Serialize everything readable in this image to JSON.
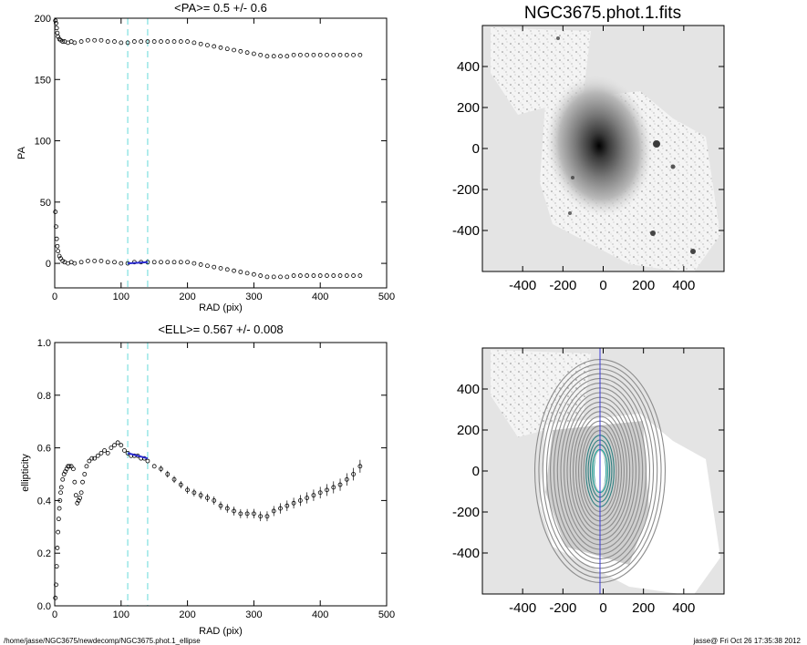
{
  "footer": {
    "path": "/home/jasse/NGC3675/newdecomp/NGC3675.phot.1_ellipse",
    "stamp": "jasse@  Fri Oct 26 17:35:38 2012"
  },
  "chart_data": [
    {
      "type": "scatter",
      "title": "<PA>=   0.5 +/-   0.6",
      "xlabel": "RAD (pix)",
      "ylabel": "PA",
      "xlim": [
        0,
        500
      ],
      "ylim": [
        -20,
        200
      ],
      "xticks": [
        "0",
        "100",
        "200",
        "300",
        "400",
        "500"
      ],
      "yticks": [
        "0",
        "50",
        "100",
        "150",
        "200"
      ],
      "vlines": [
        110,
        140
      ],
      "series": [
        {
          "values_x": [
            1,
            2,
            3,
            4,
            5,
            7,
            9,
            12,
            15,
            20,
            25,
            30,
            40,
            50,
            60,
            70,
            80,
            90,
            100,
            110,
            120,
            130,
            140,
            150,
            160,
            170,
            180,
            190,
            200,
            210,
            220,
            230,
            240,
            250,
            260,
            270,
            280,
            290,
            300,
            310,
            320,
            330,
            340,
            350,
            360,
            370,
            380,
            390,
            400,
            410,
            420,
            430,
            440,
            450,
            460
          ],
          "values_y": [
            198,
            196,
            192,
            188,
            185,
            183,
            182,
            181,
            181,
            180,
            181,
            180,
            181,
            182,
            182,
            182,
            181,
            181,
            180,
            180,
            181,
            181,
            181,
            181,
            181,
            181,
            181,
            181,
            181,
            180,
            179,
            178,
            177,
            176,
            175,
            174,
            173,
            172,
            171,
            170,
            169,
            169,
            169,
            169,
            170,
            170,
            170,
            170,
            170,
            170,
            170,
            170,
            170,
            170,
            170
          ]
        },
        {
          "values_x": [
            1,
            2,
            3,
            4,
            5,
            7,
            9,
            12,
            15,
            20,
            25,
            30,
            40,
            50,
            60,
            70,
            80,
            90,
            100,
            110,
            120,
            130,
            140,
            150,
            160,
            170,
            180,
            190,
            200,
            210,
            220,
            230,
            240,
            250,
            260,
            270,
            280,
            290,
            300,
            310,
            320,
            330,
            340,
            350,
            360,
            370,
            380,
            390,
            400,
            410,
            420,
            430,
            440,
            450,
            460
          ],
          "values_y": [
            42,
            30,
            20,
            14,
            10,
            6,
            4,
            2,
            1,
            0,
            1,
            0,
            1,
            2,
            2,
            2,
            1,
            1,
            0,
            0,
            1,
            1,
            1,
            1,
            1,
            1,
            1,
            1,
            1,
            0,
            -1,
            -2,
            -3,
            -4,
            -5,
            -6,
            -7,
            -8,
            -9,
            -10,
            -11,
            -11,
            -11,
            -11,
            -10,
            -10,
            -10,
            -10,
            -10,
            -10,
            -10,
            -10,
            -10,
            -10,
            -10
          ]
        }
      ],
      "fit": {
        "x": [
          110,
          140
        ],
        "y": [
          0,
          1
        ]
      }
    },
    {
      "type": "scatter",
      "title": "<ELL>= 0.567 +/-  0.008",
      "xlabel": "RAD (pix)",
      "ylabel": "ellipticity",
      "xlim": [
        0,
        500
      ],
      "ylim": [
        0,
        1
      ],
      "xticks": [
        "0",
        "100",
        "200",
        "300",
        "400",
        "500"
      ],
      "yticks": [
        "0.0",
        "0.2",
        "0.4",
        "0.6",
        "0.8",
        "1.0"
      ],
      "vlines": [
        110,
        140
      ],
      "series": [
        {
          "values_x": [
            1,
            2,
            3,
            4,
            5,
            6,
            7,
            8,
            9,
            10,
            12,
            14,
            16,
            18,
            20,
            22,
            25,
            28,
            30,
            32,
            34,
            36,
            38,
            40,
            42,
            45,
            48,
            52,
            56,
            60,
            65,
            70,
            75,
            80,
            85,
            90,
            95,
            100,
            105,
            110,
            115,
            120,
            125,
            130,
            135,
            140,
            150,
            160,
            170,
            180,
            190,
            200,
            210,
            220,
            230,
            240,
            250,
            260,
            270,
            280,
            290,
            300,
            310,
            320,
            330,
            340,
            350,
            360,
            370,
            380,
            390,
            400,
            410,
            420,
            430,
            440,
            450,
            460
          ],
          "values_y": [
            0.03,
            0.08,
            0.15,
            0.22,
            0.28,
            0.33,
            0.37,
            0.4,
            0.43,
            0.45,
            0.48,
            0.5,
            0.51,
            0.52,
            0.53,
            0.53,
            0.53,
            0.52,
            0.47,
            0.42,
            0.39,
            0.4,
            0.41,
            0.43,
            0.47,
            0.5,
            0.53,
            0.55,
            0.56,
            0.56,
            0.57,
            0.58,
            0.59,
            0.58,
            0.6,
            0.61,
            0.62,
            0.61,
            0.59,
            0.58,
            0.57,
            0.57,
            0.57,
            0.56,
            0.56,
            0.55,
            0.53,
            0.52,
            0.5,
            0.48,
            0.46,
            0.44,
            0.43,
            0.42,
            0.41,
            0.4,
            0.38,
            0.37,
            0.36,
            0.35,
            0.35,
            0.35,
            0.34,
            0.34,
            0.36,
            0.37,
            0.38,
            0.39,
            0.4,
            0.41,
            0.42,
            0.43,
            0.44,
            0.45,
            0.46,
            0.48,
            0.5,
            0.53
          ]
        }
      ],
      "fit": {
        "x": [
          110,
          140
        ],
        "y": [
          0.58,
          0.56
        ]
      }
    },
    {
      "type": "heatmap",
      "title": "NGC3675.phot.1.fits",
      "xlim": [
        -600,
        600
      ],
      "ylim": [
        -600,
        600
      ],
      "xticks": [
        "-400",
        "-200",
        "0",
        "200",
        "400"
      ],
      "yticks": [
        "-400",
        "-200",
        "0",
        "200",
        "400"
      ]
    },
    {
      "type": "heatmap",
      "title": "",
      "xlim": [
        -600,
        600
      ],
      "ylim": [
        -600,
        600
      ],
      "xticks": [
        "-400",
        "-200",
        "0",
        "200",
        "400"
      ],
      "yticks": [
        "-400",
        "-200",
        "0",
        "200",
        "400"
      ]
    }
  ]
}
